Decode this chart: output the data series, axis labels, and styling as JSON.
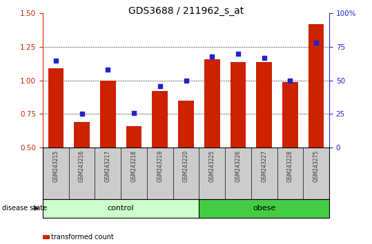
{
  "title": "GDS3688 / 211962_s_at",
  "samples": [
    "GSM243215",
    "GSM243216",
    "GSM243217",
    "GSM243218",
    "GSM243219",
    "GSM243220",
    "GSM243225",
    "GSM243226",
    "GSM243227",
    "GSM243228",
    "GSM243275"
  ],
  "transformed_count": [
    1.09,
    0.69,
    1.0,
    0.66,
    0.92,
    0.85,
    1.16,
    1.14,
    1.14,
    0.99,
    1.42
  ],
  "percentile_rank": [
    65,
    25,
    58,
    26,
    46,
    50,
    68,
    70,
    67,
    50,
    78
  ],
  "control_count": 6,
  "obese_count": 5,
  "ylim_left": [
    0.5,
    1.5
  ],
  "ylim_right": [
    0,
    100
  ],
  "yticks_left": [
    0.5,
    0.75,
    1.0,
    1.25,
    1.5
  ],
  "yticks_right": [
    0,
    25,
    50,
    75,
    100
  ],
  "bar_color": "#CC2200",
  "scatter_color": "#2222CC",
  "control_facecolor": "#CCFFCC",
  "obese_facecolor": "#44CC44",
  "bg_color": "#CCCCCC",
  "right_axis_color": "#2222CC",
  "left_axis_color": "#CC2200",
  "label_fontsize": 7.5,
  "tick_fontsize": 7.5,
  "title_fontsize": 10
}
